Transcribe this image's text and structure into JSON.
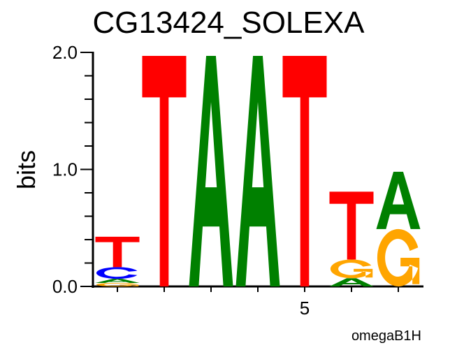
{
  "chart_data": {
    "type": "sequence-logo",
    "title": "CG13424_SOLEXA",
    "ylabel": "bits",
    "xlabel": "",
    "ylim": [
      0,
      2
    ],
    "yticks": [
      "0.0",
      "1.0",
      "2.0"
    ],
    "xtick_labels": [
      {
        "position": 5,
        "label": "5"
      }
    ],
    "footer": "omegaB1H",
    "colors": {
      "A": "#008000",
      "C": "#0000ff",
      "G": "#ffa500",
      "T": "#ff0000"
    },
    "positions": [
      {
        "pos": 1,
        "letters": [
          {
            "l": "G",
            "bits": 0.03
          },
          {
            "l": "A",
            "bits": 0.035
          },
          {
            "l": "C",
            "bits": 0.1
          },
          {
            "l": "T",
            "bits": 0.26
          }
        ]
      },
      {
        "pos": 2,
        "letters": [
          {
            "l": "T",
            "bits": 1.97
          }
        ]
      },
      {
        "pos": 3,
        "letters": [
          {
            "l": "A",
            "bits": 1.97
          }
        ]
      },
      {
        "pos": 4,
        "letters": [
          {
            "l": "A",
            "bits": 1.97
          }
        ]
      },
      {
        "pos": 5,
        "letters": [
          {
            "l": "T",
            "bits": 1.97
          }
        ]
      },
      {
        "pos": 6,
        "letters": [
          {
            "l": "A",
            "bits": 0.07
          },
          {
            "l": "G",
            "bits": 0.16
          },
          {
            "l": "T",
            "bits": 0.58
          }
        ]
      },
      {
        "pos": 7,
        "letters": [
          {
            "l": "G",
            "bits": 0.49
          },
          {
            "l": "A",
            "bits": 0.49
          }
        ]
      }
    ]
  }
}
